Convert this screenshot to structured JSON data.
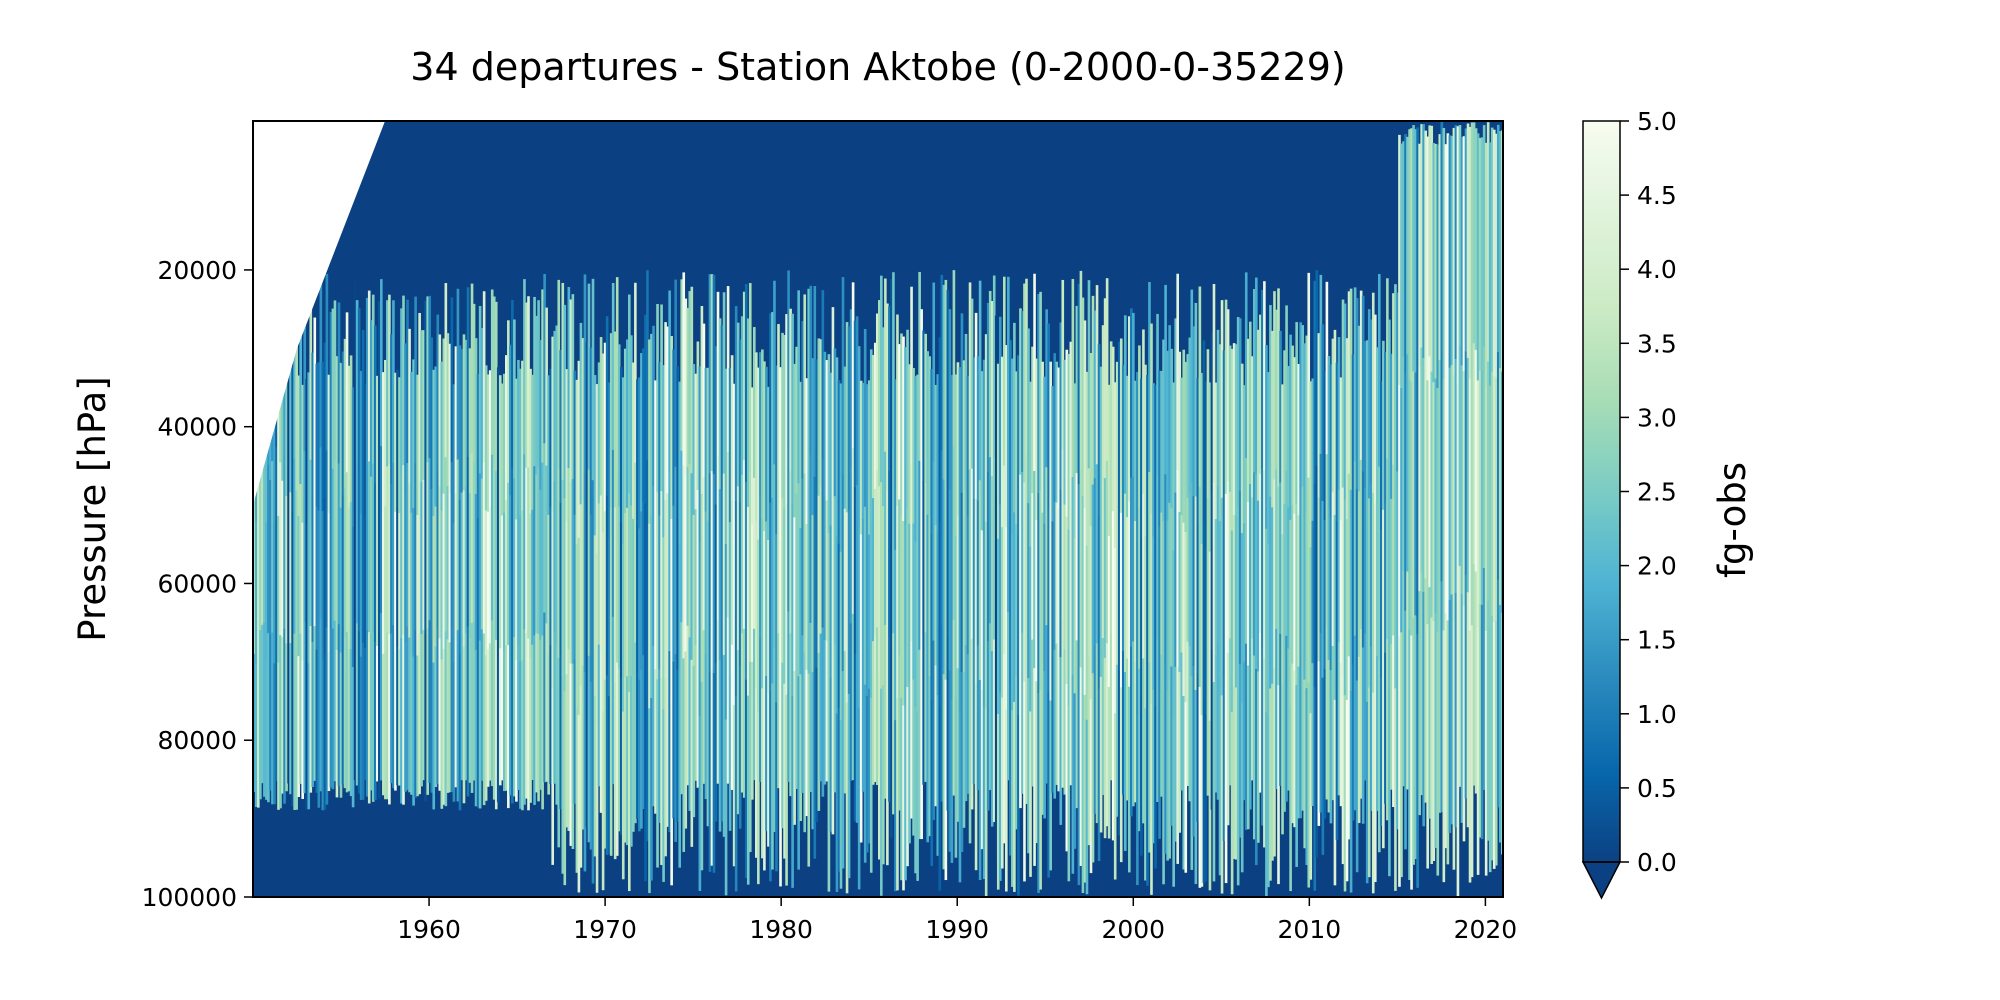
{
  "chart_data": {
    "type": "heatmap",
    "title": "34 departures - Station Aktobe (0-2000-0-35229)",
    "xlabel": "",
    "ylabel": "Pressure [hPa]",
    "x_tick_labels": [
      "1960",
      "1970",
      "1980",
      "1990",
      "2000",
      "2010",
      "2020"
    ],
    "x_ticks": [
      1960,
      1970,
      1980,
      1990,
      2000,
      2010,
      2020
    ],
    "xlim": [
      1950,
      2021
    ],
    "y_tick_labels": [
      "20000",
      "40000",
      "60000",
      "80000",
      "100000"
    ],
    "y_ticks": [
      20000,
      40000,
      60000,
      80000,
      100000
    ],
    "ylim": [
      100000,
      1000
    ],
    "y_inverted": true,
    "grid": false,
    "colorbar": {
      "label": "fg-obs",
      "colormap": "GnBu_r",
      "min": 0.0,
      "max": 5.0,
      "extend": "min",
      "tick_labels": [
        "0.0",
        "0.5",
        "1.0",
        "1.5",
        "2.0",
        "2.5",
        "3.0",
        "3.5",
        "4.0",
        "4.5",
        "5.0"
      ],
      "ticks": [
        0.0,
        0.5,
        1.0,
        1.5,
        2.0,
        2.5,
        3.0,
        3.5,
        4.0,
        4.5,
        5.0
      ],
      "colors": [
        "#0b4183",
        "#0868ac",
        "#2b8cbe",
        "#4eb3d3",
        "#7bccc4",
        "#a8ddb5",
        "#ccebc5",
        "#e0f3db",
        "#f7fcf0"
      ]
    }
  }
}
